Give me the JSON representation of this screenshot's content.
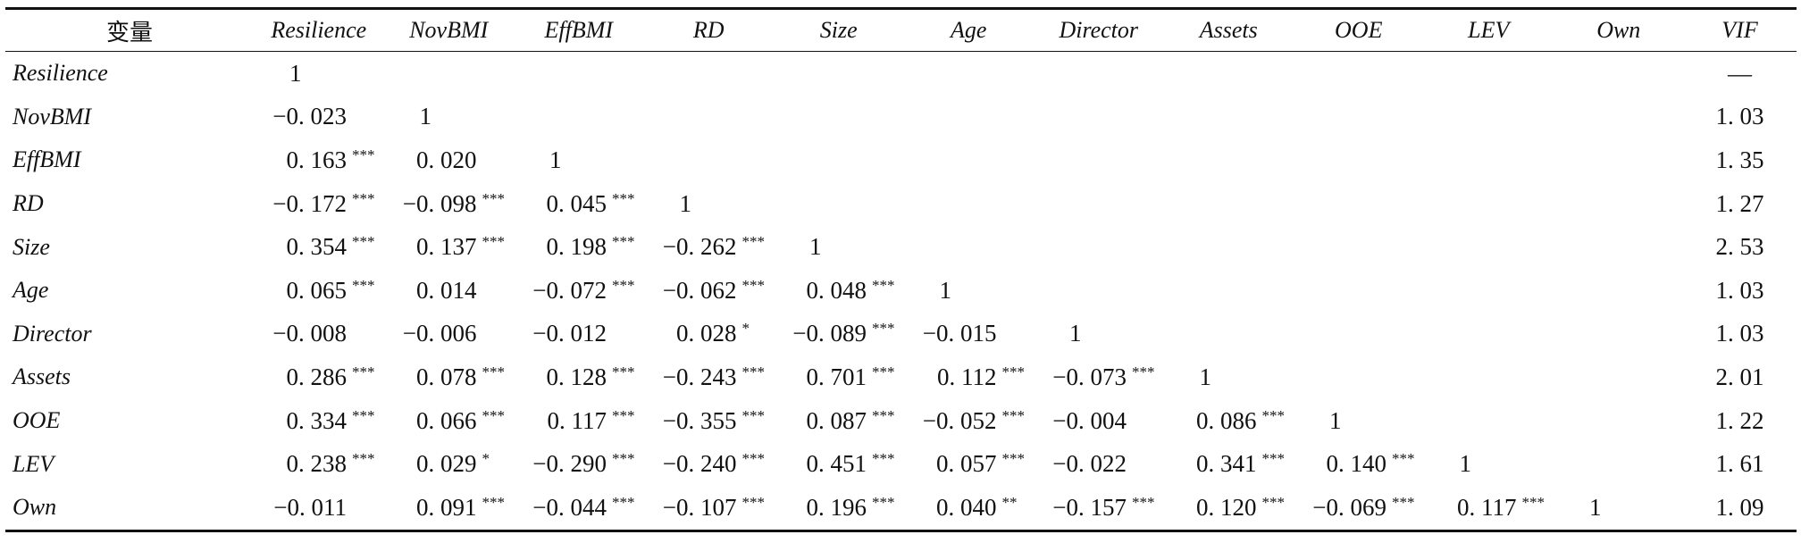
{
  "header": {
    "first": "变量",
    "columns": [
      "Resilience",
      "NovBMI",
      "EffBMI",
      "RD",
      "Size",
      "Age",
      "Director",
      "Assets",
      "OOE",
      "LEV",
      "Own"
    ],
    "vif": "VIF"
  },
  "rows": [
    {
      "label": "Resilience",
      "cells": [
        [
          "1",
          ""
        ]
      ],
      "vif": "—"
    },
    {
      "label": "NovBMI",
      "cells": [
        [
          "−0. 023",
          ""
        ],
        [
          "1",
          ""
        ]
      ],
      "vif": "1. 03"
    },
    {
      "label": "EffBMI",
      "cells": [
        [
          "0. 163",
          "***"
        ],
        [
          "0. 020",
          ""
        ],
        [
          "1",
          ""
        ]
      ],
      "vif": "1. 35"
    },
    {
      "label": "RD",
      "cells": [
        [
          "−0. 172",
          "***"
        ],
        [
          "−0. 098",
          "***"
        ],
        [
          "0. 045",
          "***"
        ],
        [
          "1",
          ""
        ]
      ],
      "vif": "1. 27"
    },
    {
      "label": "Size",
      "cells": [
        [
          "0. 354",
          "***"
        ],
        [
          "0. 137",
          "***"
        ],
        [
          "0. 198",
          "***"
        ],
        [
          "−0. 262",
          "***"
        ],
        [
          "1",
          ""
        ]
      ],
      "vif": "2. 53"
    },
    {
      "label": "Age",
      "cells": [
        [
          "0. 065",
          "***"
        ],
        [
          "0. 014",
          ""
        ],
        [
          "−0. 072",
          "***"
        ],
        [
          "−0. 062",
          "***"
        ],
        [
          "0. 048",
          "***"
        ],
        [
          "1",
          ""
        ]
      ],
      "vif": "1. 03"
    },
    {
      "label": "Director",
      "cells": [
        [
          "−0. 008",
          ""
        ],
        [
          "−0. 006",
          ""
        ],
        [
          "−0. 012",
          ""
        ],
        [
          "0. 028",
          "*"
        ],
        [
          "−0. 089",
          "***"
        ],
        [
          "−0. 015",
          ""
        ],
        [
          "1",
          ""
        ]
      ],
      "vif": "1. 03"
    },
    {
      "label": "Assets",
      "cells": [
        [
          "0. 286",
          "***"
        ],
        [
          "0. 078",
          "***"
        ],
        [
          "0. 128",
          "***"
        ],
        [
          "−0. 243",
          "***"
        ],
        [
          "0. 701",
          "***"
        ],
        [
          "0. 112",
          "***"
        ],
        [
          "−0. 073",
          "***"
        ],
        [
          "1",
          ""
        ]
      ],
      "vif": "2. 01"
    },
    {
      "label": "OOE",
      "cells": [
        [
          "0. 334",
          "***"
        ],
        [
          "0. 066",
          "***"
        ],
        [
          "0. 117",
          "***"
        ],
        [
          "−0. 355",
          "***"
        ],
        [
          "0. 087",
          "***"
        ],
        [
          "−0. 052",
          "***"
        ],
        [
          "−0. 004",
          ""
        ],
        [
          "0. 086",
          "***"
        ],
        [
          "1",
          ""
        ]
      ],
      "vif": "1. 22"
    },
    {
      "label": "LEV",
      "cells": [
        [
          "0. 238",
          "***"
        ],
        [
          "0. 029",
          "*"
        ],
        [
          "−0. 290",
          "***"
        ],
        [
          "−0. 240",
          "***"
        ],
        [
          "0. 451",
          "***"
        ],
        [
          "0. 057",
          "***"
        ],
        [
          "−0. 022",
          ""
        ],
        [
          "0. 341",
          "***"
        ],
        [
          "0. 140",
          "***"
        ],
        [
          "1",
          ""
        ]
      ],
      "vif": "1. 61"
    },
    {
      "label": "Own",
      "cells": [
        [
          "−0. 011",
          ""
        ],
        [
          "0. 091",
          "***"
        ],
        [
          "−0. 044",
          "***"
        ],
        [
          "−0. 107",
          "***"
        ],
        [
          "0. 196",
          "***"
        ],
        [
          "0. 040",
          "**"
        ],
        [
          "−0. 157",
          "***"
        ],
        [
          "0. 120",
          "***"
        ],
        [
          "−0. 069",
          "***"
        ],
        [
          "0. 117",
          "***"
        ],
        [
          "1",
          ""
        ]
      ],
      "vif": "1. 09"
    }
  ]
}
